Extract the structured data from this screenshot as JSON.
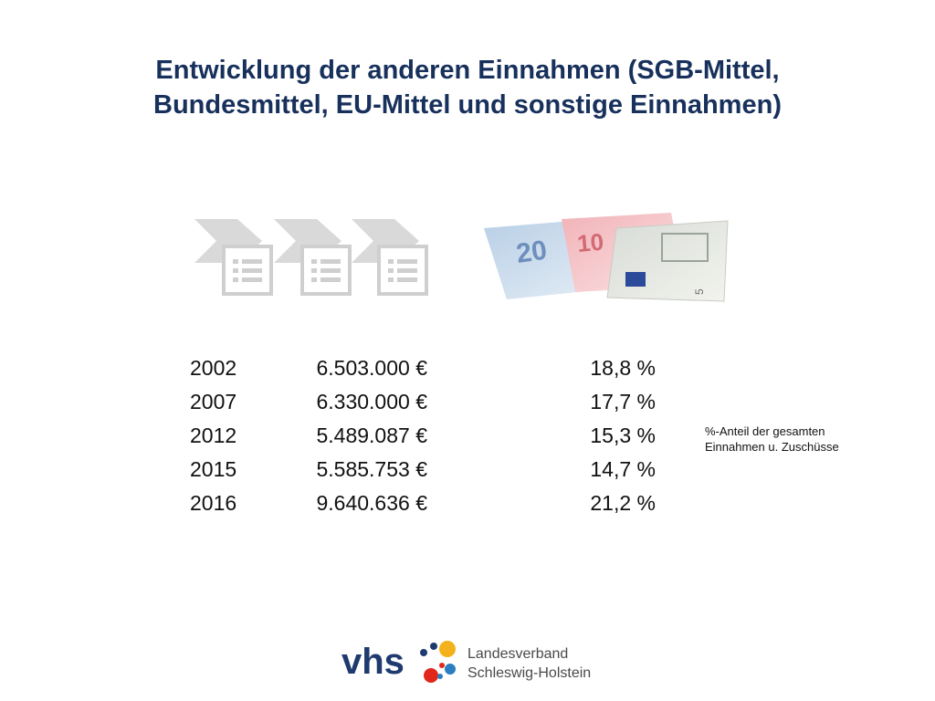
{
  "title": {
    "line1": "Entwicklung der anderen Einnahmen (SGB-Mittel,",
    "line2": "Bundesmittel, EU-Mittel und sonstige Einnahmen)"
  },
  "rows": [
    {
      "year": "2002",
      "amount": "6.503.000 €",
      "percent": "18,8 %"
    },
    {
      "year": "2007",
      "amount": "6.330.000 €",
      "percent": "17,7 %"
    },
    {
      "year": "2012",
      "amount": "5.489.087 €",
      "percent": "15,3 %"
    },
    {
      "year": "2015",
      "amount": "5.585.753 €",
      "percent": "14,7 %"
    },
    {
      "year": "2016",
      "amount": "9.640.636 €",
      "percent": "21,2 %"
    }
  ],
  "note": {
    "line1": "%-Anteil der gesamten",
    "line2": "Einnahmen u. Zuschüsse"
  },
  "logo": {
    "wordmark": "vhs",
    "line1": "Landesverband",
    "line2": "Schleswig-Holstein"
  },
  "colors": {
    "title": "#17305c",
    "logo_blue": "#1e3a6e",
    "dot_yellow": "#f3b21c",
    "dot_red": "#e1261c",
    "dot_blue": "#2a7fc1"
  },
  "icons": [
    "process-arrow-icon",
    "document-list-icon",
    "euro-banknotes-icon"
  ]
}
